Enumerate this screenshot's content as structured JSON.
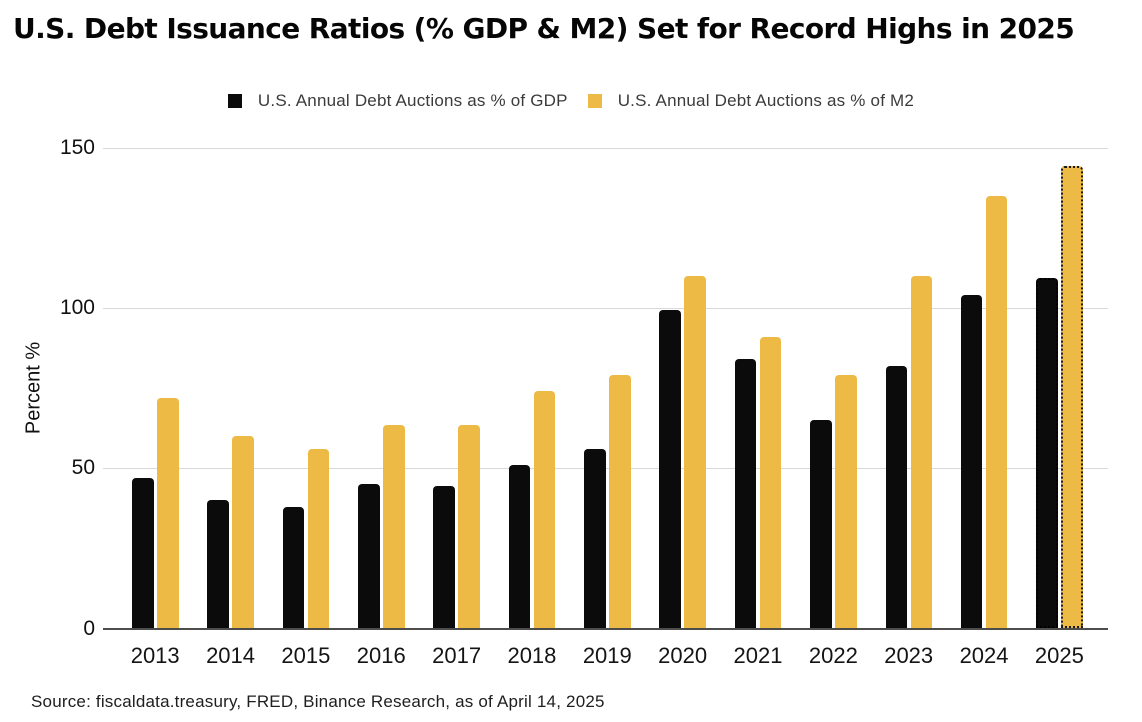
{
  "title": "U.S. Debt Issuance Ratios (% GDP & M2) Set for Record Highs in 2025",
  "legend": [
    {
      "label": "U.S. Annual Debt Auctions as % of GDP",
      "color": "#0b0b0b"
    },
    {
      "label": "U.S. Annual Debt Auctions as % of  M2",
      "color": "#ecba45"
    }
  ],
  "source": "Source: fiscaldata.treasury, FRED, Binance Research, as of April 14, 2025",
  "chart_data": {
    "type": "bar",
    "title": "U.S. Debt Issuance Ratios (% GDP & M2) Set for Record Highs in 2025",
    "xlabel": "",
    "ylabel": "Percent %",
    "categories": [
      "2013",
      "2014",
      "2015",
      "2016",
      "2017",
      "2018",
      "2019",
      "2020",
      "2021",
      "2022",
      "2023",
      "2024",
      "2025"
    ],
    "series": [
      {
        "name": "U.S. Annual Debt Auctions as % of GDP",
        "color": "#0b0b0b",
        "values": [
          47,
          40,
          38,
          45,
          44.5,
          51,
          56,
          99.5,
          84,
          65,
          82,
          104,
          109.5
        ]
      },
      {
        "name": "U.S. Annual Debt Auctions as % of  M2",
        "color": "#ecba45",
        "values": [
          72,
          60,
          56,
          63.5,
          63.5,
          74,
          79,
          110,
          91,
          79,
          110,
          135,
          144.5
        ]
      }
    ],
    "yticks": [
      0,
      50,
      100,
      150
    ],
    "ylim": [
      0,
      150
    ],
    "grid": true,
    "grid_color": "#d9d9d9",
    "axis_color": "#4d4d4d",
    "legend_position": "top",
    "estimated_categories": [
      "2025"
    ],
    "estimated_style": "dotted-outline"
  }
}
